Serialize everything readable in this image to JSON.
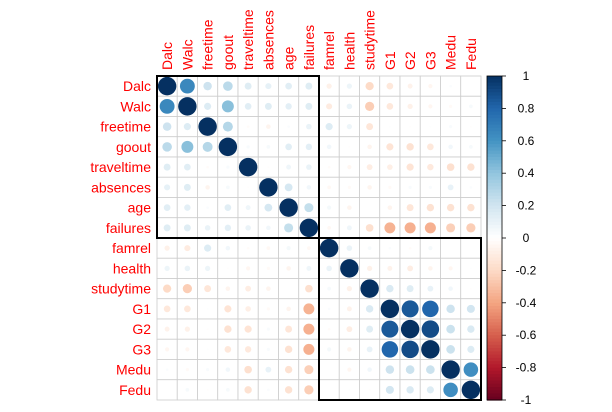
{
  "chart_data": {
    "type": "heatmap",
    "variables": [
      "Dalc",
      "Walc",
      "freetime",
      "goout",
      "traveltime",
      "absences",
      "age",
      "failures",
      "famrel",
      "health",
      "studytime",
      "G1",
      "G2",
      "G3",
      "Medu",
      "Fedu"
    ],
    "matrix": [
      [
        1.0,
        0.65,
        0.21,
        0.27,
        0.14,
        0.11,
        0.13,
        0.14,
        -0.08,
        0.08,
        -0.2,
        -0.13,
        -0.07,
        -0.05,
        0.02,
        0.0
      ],
      [
        0.65,
        1.0,
        0.15,
        0.42,
        0.13,
        0.14,
        0.12,
        0.14,
        -0.11,
        0.09,
        -0.25,
        -0.13,
        -0.08,
        -0.05,
        -0.03,
        0.04
      ],
      [
        0.21,
        0.15,
        1.0,
        0.29,
        -0.02,
        -0.06,
        0.02,
        0.09,
        0.15,
        0.08,
        -0.14,
        0.01,
        -0.01,
        0.01,
        0.03,
        -0.01
      ],
      [
        0.27,
        0.42,
        0.29,
        1.0,
        0.03,
        0.04,
        0.13,
        0.12,
        0.06,
        -0.01,
        -0.06,
        -0.15,
        -0.16,
        -0.13,
        0.06,
        0.04
      ],
      [
        0.14,
        0.13,
        -0.02,
        0.03,
        1.0,
        -0.01,
        0.07,
        0.09,
        -0.02,
        -0.05,
        -0.1,
        -0.09,
        -0.15,
        -0.12,
        -0.17,
        -0.16
      ],
      [
        0.11,
        0.14,
        -0.06,
        0.04,
        -0.01,
        1.0,
        0.18,
        0.06,
        -0.04,
        -0.03,
        -0.06,
        -0.03,
        0.03,
        0.03,
        0.1,
        0.02
      ],
      [
        0.13,
        0.12,
        0.02,
        0.13,
        0.07,
        0.18,
        1.0,
        0.24,
        0.05,
        -0.06,
        -0.0,
        -0.06,
        -0.14,
        -0.16,
        -0.16,
        -0.16
      ],
      [
        0.14,
        0.14,
        0.09,
        0.12,
        0.09,
        0.06,
        0.24,
        1.0,
        -0.04,
        0.07,
        -0.17,
        -0.35,
        -0.36,
        -0.36,
        -0.24,
        -0.25
      ],
      [
        -0.08,
        -0.11,
        0.15,
        0.06,
        -0.02,
        -0.04,
        0.05,
        -0.04,
        1.0,
        0.09,
        0.04,
        0.02,
        -0.02,
        0.05,
        -0.0,
        -0.0
      ],
      [
        0.08,
        0.09,
        0.08,
        -0.01,
        -0.05,
        -0.03,
        -0.06,
        0.07,
        0.09,
        1.0,
        -0.08,
        -0.07,
        -0.1,
        -0.06,
        -0.05,
        0.01
      ],
      [
        -0.2,
        -0.25,
        -0.14,
        -0.06,
        -0.1,
        -0.06,
        -0.0,
        -0.17,
        0.04,
        -0.08,
        1.0,
        0.16,
        0.14,
        0.1,
        0.06,
        -0.01
      ],
      [
        -0.13,
        -0.13,
        0.01,
        -0.15,
        -0.09,
        -0.03,
        -0.06,
        -0.35,
        0.02,
        -0.07,
        0.16,
        1.0,
        0.85,
        0.8,
        0.21,
        0.19
      ],
      [
        -0.07,
        -0.08,
        -0.01,
        -0.16,
        -0.15,
        0.03,
        -0.14,
        -0.36,
        -0.02,
        -0.1,
        0.14,
        0.85,
        1.0,
        0.9,
        0.22,
        0.16
      ],
      [
        -0.05,
        -0.05,
        0.01,
        -0.13,
        -0.12,
        0.03,
        -0.16,
        -0.36,
        0.05,
        -0.06,
        0.1,
        0.8,
        0.9,
        1.0,
        0.22,
        0.15
      ],
      [
        0.02,
        -0.03,
        0.03,
        0.06,
        -0.17,
        0.1,
        -0.16,
        -0.24,
        -0.0,
        -0.05,
        0.06,
        0.21,
        0.22,
        0.22,
        1.0,
        0.62
      ],
      [
        0.0,
        0.04,
        -0.01,
        0.04,
        -0.16,
        0.02,
        -0.16,
        -0.25,
        -0.0,
        0.01,
        -0.01,
        0.19,
        0.16,
        0.15,
        0.62,
        1.0
      ]
    ],
    "clusters": [
      {
        "start": 0,
        "end": 7
      },
      {
        "start": 8,
        "end": 15
      }
    ],
    "colorbar": {
      "range": [
        -1,
        1
      ],
      "ticks": [
        "1",
        "0.8",
        "0.6",
        "0.4",
        "0.2",
        "0",
        "-0.2",
        "-0.4",
        "-0.6",
        "-0.8",
        "-1"
      ],
      "ticks_values": [
        1,
        0.8,
        0.6,
        0.4,
        0.2,
        0,
        -0.2,
        -0.4,
        -0.6,
        -0.8,
        -1
      ]
    },
    "colors": {
      "label": "#ff0000",
      "grid": "#cccccc",
      "cluster_border": "#000000",
      "scale": [
        "#67001f",
        "#b2182b",
        "#d6604d",
        "#f4a582",
        "#fddbc7",
        "#ffffff",
        "#d1e5f0",
        "#92c5de",
        "#4393c3",
        "#2166ac",
        "#053061"
      ]
    },
    "grid": true,
    "legend": "right"
  }
}
